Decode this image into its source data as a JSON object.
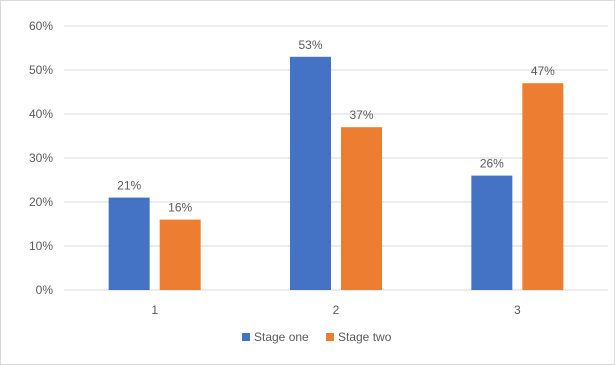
{
  "chart_data": {
    "type": "bar",
    "categories": [
      "1",
      "2",
      "3"
    ],
    "series": [
      {
        "name": "Stage one",
        "values": [
          21,
          53,
          26
        ],
        "labels": [
          "21%",
          "53%",
          "26%"
        ],
        "color": "#4472c4"
      },
      {
        "name": "Stage two",
        "values": [
          16,
          37,
          47
        ],
        "labels": [
          "16%",
          "37%",
          "47%"
        ],
        "color": "#ed7d31"
      }
    ],
    "yticks": [
      "0%",
      "10%",
      "20%",
      "30%",
      "40%",
      "50%",
      "60%"
    ],
    "ylim": [
      0,
      60
    ],
    "ytick_step": 10,
    "grid": true,
    "grid_color": "#d9d9d9",
    "legend_position": "bottom"
  }
}
